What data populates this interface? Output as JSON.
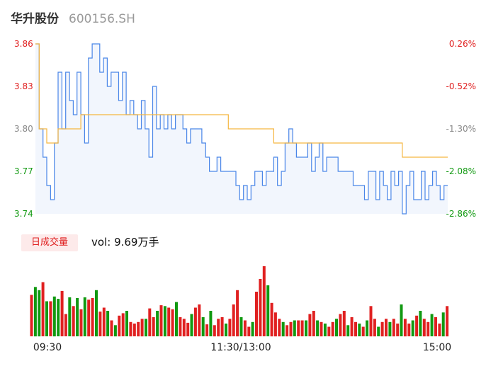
{
  "header": {
    "stock_name": "华升股份",
    "stock_code": "600156.SH"
  },
  "volume_panel": {
    "label": "日成交量",
    "vol_prefix": "vol:",
    "vol_value": "9.69万手"
  },
  "colors": {
    "price_line": "#4a86e8",
    "avg_line": "#f5b640",
    "up": "#e02020",
    "down": "#119911",
    "area": "#f2f6fd"
  },
  "chart_data": [
    {
      "type": "line",
      "y_axis_left": {
        "ticks": [
          "3.86",
          "3.83",
          "3.80",
          "3.77",
          "3.74"
        ],
        "tick_colors": [
          "#e02020",
          "#e02020",
          "#888888",
          "#119911",
          "#119911"
        ],
        "ylim": [
          3.74,
          3.86
        ]
      },
      "y_axis_right": {
        "ticks": [
          "0.26%",
          "-0.52%",
          "-1.30%",
          "-2.08%",
          "-2.86%"
        ],
        "tick_colors": [
          "#e02020",
          "#e02020",
          "#888888",
          "#119911",
          "#119911"
        ]
      },
      "x_ticks": [
        "09:30",
        "11:30/13:00",
        "15:00"
      ],
      "series": [
        {
          "role": "price",
          "values": [
            3.86,
            3.8,
            3.78,
            3.76,
            3.75,
            3.79,
            3.84,
            3.8,
            3.84,
            3.82,
            3.81,
            3.84,
            3.81,
            3.79,
            3.85,
            3.86,
            3.86,
            3.84,
            3.85,
            3.83,
            3.84,
            3.84,
            3.82,
            3.84,
            3.81,
            3.82,
            3.81,
            3.8,
            3.82,
            3.8,
            3.78,
            3.83,
            3.8,
            3.81,
            3.8,
            3.81,
            3.8,
            3.81,
            3.81,
            3.8,
            3.79,
            3.8,
            3.8,
            3.8,
            3.79,
            3.78,
            3.77,
            3.77,
            3.78,
            3.77,
            3.77,
            3.77,
            3.77,
            3.76,
            3.75,
            3.76,
            3.75,
            3.76,
            3.77,
            3.77,
            3.76,
            3.77,
            3.77,
            3.78,
            3.76,
            3.77,
            3.79,
            3.8,
            3.79,
            3.78,
            3.78,
            3.78,
            3.79,
            3.77,
            3.78,
            3.79,
            3.77,
            3.78,
            3.78,
            3.78,
            3.77,
            3.77,
            3.77,
            3.77,
            3.76,
            3.76,
            3.76,
            3.75,
            3.77,
            3.77,
            3.75,
            3.77,
            3.76,
            3.75,
            3.77,
            3.76,
            3.77,
            3.74,
            3.76,
            3.77,
            3.75,
            3.75,
            3.77,
            3.75,
            3.76,
            3.77,
            3.76,
            3.75,
            3.76,
            3.76
          ]
        },
        {
          "role": "average",
          "values": [
            3.86,
            3.8,
            3.8,
            3.79,
            3.79,
            3.79,
            3.8,
            3.8,
            3.8,
            3.8,
            3.8,
            3.8,
            3.81,
            3.81,
            3.81,
            3.81,
            3.81,
            3.81,
            3.81,
            3.81,
            3.81,
            3.81,
            3.81,
            3.81,
            3.81,
            3.81,
            3.81,
            3.81,
            3.81,
            3.81,
            3.81,
            3.81,
            3.81,
            3.81,
            3.81,
            3.81,
            3.81,
            3.81,
            3.81,
            3.81,
            3.81,
            3.81,
            3.81,
            3.81,
            3.81,
            3.81,
            3.81,
            3.81,
            3.81,
            3.81,
            3.81,
            3.8,
            3.8,
            3.8,
            3.8,
            3.8,
            3.8,
            3.8,
            3.8,
            3.8,
            3.8,
            3.8,
            3.8,
            3.79,
            3.79,
            3.79,
            3.79,
            3.79,
            3.79,
            3.79,
            3.79,
            3.79,
            3.79,
            3.79,
            3.79,
            3.79,
            3.79,
            3.79,
            3.79,
            3.79,
            3.79,
            3.79,
            3.79,
            3.79,
            3.79,
            3.79,
            3.79,
            3.79,
            3.79,
            3.79,
            3.79,
            3.79,
            3.79,
            3.79,
            3.79,
            3.79,
            3.79,
            3.78,
            3.78,
            3.78,
            3.78,
            3.78,
            3.78,
            3.78,
            3.78,
            3.78,
            3.78,
            3.78,
            3.78,
            3.78
          ]
        }
      ]
    },
    {
      "type": "bar",
      "name": "volume",
      "values": [
        52,
        62,
        58,
        68,
        44,
        44,
        50,
        47,
        57,
        28,
        49,
        38,
        48,
        34,
        49,
        46,
        48,
        58,
        31,
        36,
        32,
        20,
        14,
        26,
        29,
        32,
        18,
        16,
        18,
        22,
        22,
        35,
        24,
        32,
        39,
        38,
        36,
        34,
        43,
        24,
        22,
        17,
        28,
        36,
        40,
        24,
        15,
        32,
        14,
        22,
        24,
        16,
        22,
        40,
        58,
        24,
        20,
        12,
        18,
        56,
        72,
        88,
        64,
        42,
        30,
        22,
        18,
        14,
        18,
        20,
        20,
        20,
        20,
        28,
        32,
        20,
        18,
        16,
        12,
        18,
        22,
        28,
        32,
        14,
        24,
        18,
        16,
        12,
        20,
        38,
        22,
        12,
        18,
        22,
        18,
        22,
        16,
        40,
        22,
        16,
        20,
        26,
        32,
        22,
        18,
        28,
        24,
        16,
        30,
        38
      ],
      "colors": [
        "up",
        "down",
        "down",
        "up",
        "down",
        "up",
        "down",
        "down",
        "up",
        "up",
        "down",
        "up",
        "down",
        "up",
        "down",
        "up",
        "up",
        "down",
        "up",
        "up",
        "down",
        "up",
        "down",
        "up",
        "up",
        "down",
        "up",
        "up",
        "up",
        "up",
        "down",
        "up",
        "up",
        "down",
        "up",
        "down",
        "up",
        "up",
        "down",
        "up",
        "up",
        "up",
        "down",
        "up",
        "up",
        "down",
        "up",
        "down",
        "up",
        "up",
        "up",
        "down",
        "up",
        "up",
        "up",
        "down",
        "up",
        "up",
        "down",
        "up",
        "up",
        "up",
        "down",
        "up",
        "up",
        "up",
        "down",
        "up",
        "up",
        "down",
        "up",
        "up",
        "down",
        "up",
        "up",
        "down",
        "up",
        "down",
        "up",
        "up",
        "down",
        "up",
        "up",
        "down",
        "up",
        "up",
        "down",
        "up",
        "down",
        "up",
        "up",
        "down",
        "up",
        "up",
        "down",
        "up",
        "up",
        "down",
        "up",
        "up",
        "down",
        "up",
        "down",
        "up",
        "up",
        "down",
        "up",
        "up",
        "down",
        "up"
      ]
    }
  ]
}
